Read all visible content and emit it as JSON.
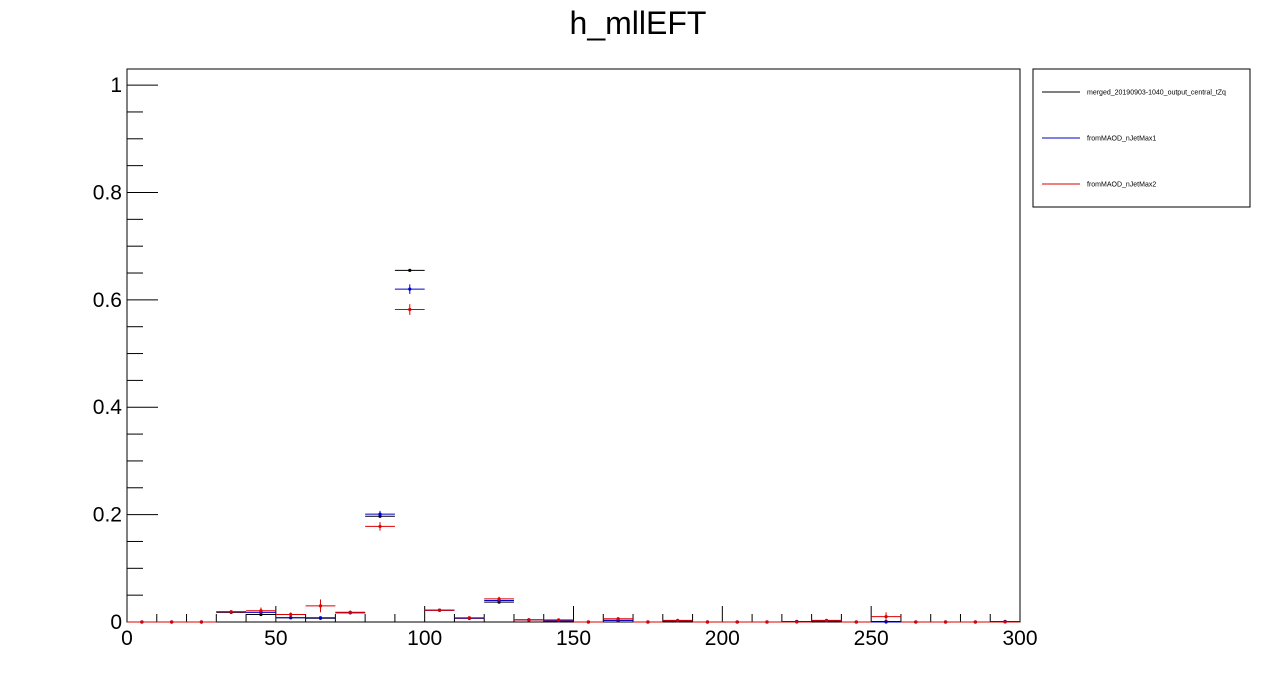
{
  "chart_data": {
    "type": "scatter",
    "title": "h_mllEFT",
    "xlabel": "",
    "ylabel": "",
    "xlim": [
      0,
      300
    ],
    "ylim": [
      0,
      1.03
    ],
    "bin_width": 10,
    "grid": false,
    "legend_position": "top-right, outside the plot frame",
    "x_major_ticks": [
      0,
      50,
      100,
      150,
      200,
      250,
      300
    ],
    "x_tick_labels": [
      "0",
      "50",
      "100",
      "150",
      "200",
      "250",
      "300"
    ],
    "y_major_ticks": [
      0,
      0.2,
      0.4,
      0.6,
      0.8,
      1
    ],
    "y_tick_labels": [
      "0",
      "0.2",
      "0.4",
      "0.6",
      "0.8",
      "1"
    ],
    "series": [
      {
        "name": "merged_20190903-1040_output_central_tZq",
        "color": "#000000",
        "x": [
          5,
          15,
          25,
          35,
          45,
          55,
          65,
          75,
          85,
          95,
          105,
          115,
          125,
          135,
          145,
          155,
          165,
          175,
          185,
          195,
          205,
          215,
          225,
          235,
          245,
          255,
          265,
          275,
          285,
          295
        ],
        "y": [
          0,
          0,
          0,
          0.018,
          0.014,
          0.008,
          0.007,
          0.018,
          0.197,
          0.655,
          0.022,
          0.007,
          0.037,
          0.004,
          0.002,
          0,
          0.003,
          0,
          0.002,
          0,
          0,
          0,
          0.001,
          0.002,
          0,
          0.001,
          0,
          0,
          0,
          0.001
        ],
        "yerr": [
          0,
          0,
          0,
          0.001,
          0.002,
          0.001,
          0.001,
          0.001,
          0.003,
          0.002,
          0.001,
          0.001,
          0.001,
          0.001,
          0.001,
          0,
          0.001,
          0,
          0.001,
          0,
          0,
          0,
          0.001,
          0.001,
          0,
          0.001,
          0,
          0,
          0,
          0.001
        ]
      },
      {
        "name": "fromMAOD_nJetMax1",
        "color": "#0000cc",
        "x": [
          5,
          15,
          25,
          35,
          45,
          55,
          65,
          75,
          85,
          95,
          105,
          115,
          125,
          135,
          145,
          155,
          165,
          175,
          185,
          195,
          205,
          215,
          225,
          235,
          245,
          255,
          265,
          275,
          285,
          295
        ],
        "y": [
          0,
          0,
          0,
          0.019,
          0.018,
          0.008,
          0.008,
          0.017,
          0.201,
          0.62,
          0.022,
          0.007,
          0.04,
          0.004,
          0.002,
          0,
          0.003,
          0,
          0.002,
          0,
          0,
          0,
          0.001,
          0.002,
          0,
          0,
          0,
          0,
          0,
          0.001
        ],
        "yerr": [
          0,
          0,
          0,
          0.002,
          0.003,
          0.002,
          0.002,
          0.002,
          0.006,
          0.009,
          0.002,
          0.002,
          0.003,
          0.001,
          0.001,
          0,
          0.001,
          0,
          0.001,
          0,
          0,
          0,
          0.001,
          0.001,
          0,
          0,
          0,
          0,
          0,
          0.001
        ]
      },
      {
        "name": "fromMAOD_nJetMax2",
        "color": "#dd0000",
        "x": [
          5,
          15,
          25,
          35,
          45,
          55,
          65,
          75,
          85,
          95,
          105,
          115,
          125,
          135,
          145,
          155,
          165,
          175,
          185,
          195,
          205,
          215,
          225,
          235,
          245,
          255,
          265,
          275,
          285,
          295
        ],
        "y": [
          0,
          0,
          0,
          0.019,
          0.021,
          0.014,
          0.03,
          0.018,
          0.178,
          0.582,
          0.022,
          0.008,
          0.043,
          0.004,
          0.004,
          0,
          0.006,
          0,
          0.003,
          0,
          0,
          0,
          0,
          0.003,
          0,
          0.01,
          0,
          0,
          0,
          0
        ],
        "yerr": [
          0,
          0,
          0,
          0.003,
          0.006,
          0.004,
          0.012,
          0.003,
          0.008,
          0.01,
          0.003,
          0.002,
          0.004,
          0.002,
          0.002,
          0,
          0.003,
          0,
          0.002,
          0,
          0,
          0,
          0,
          0.002,
          0,
          0.008,
          0,
          0,
          0,
          0
        ]
      }
    ]
  }
}
